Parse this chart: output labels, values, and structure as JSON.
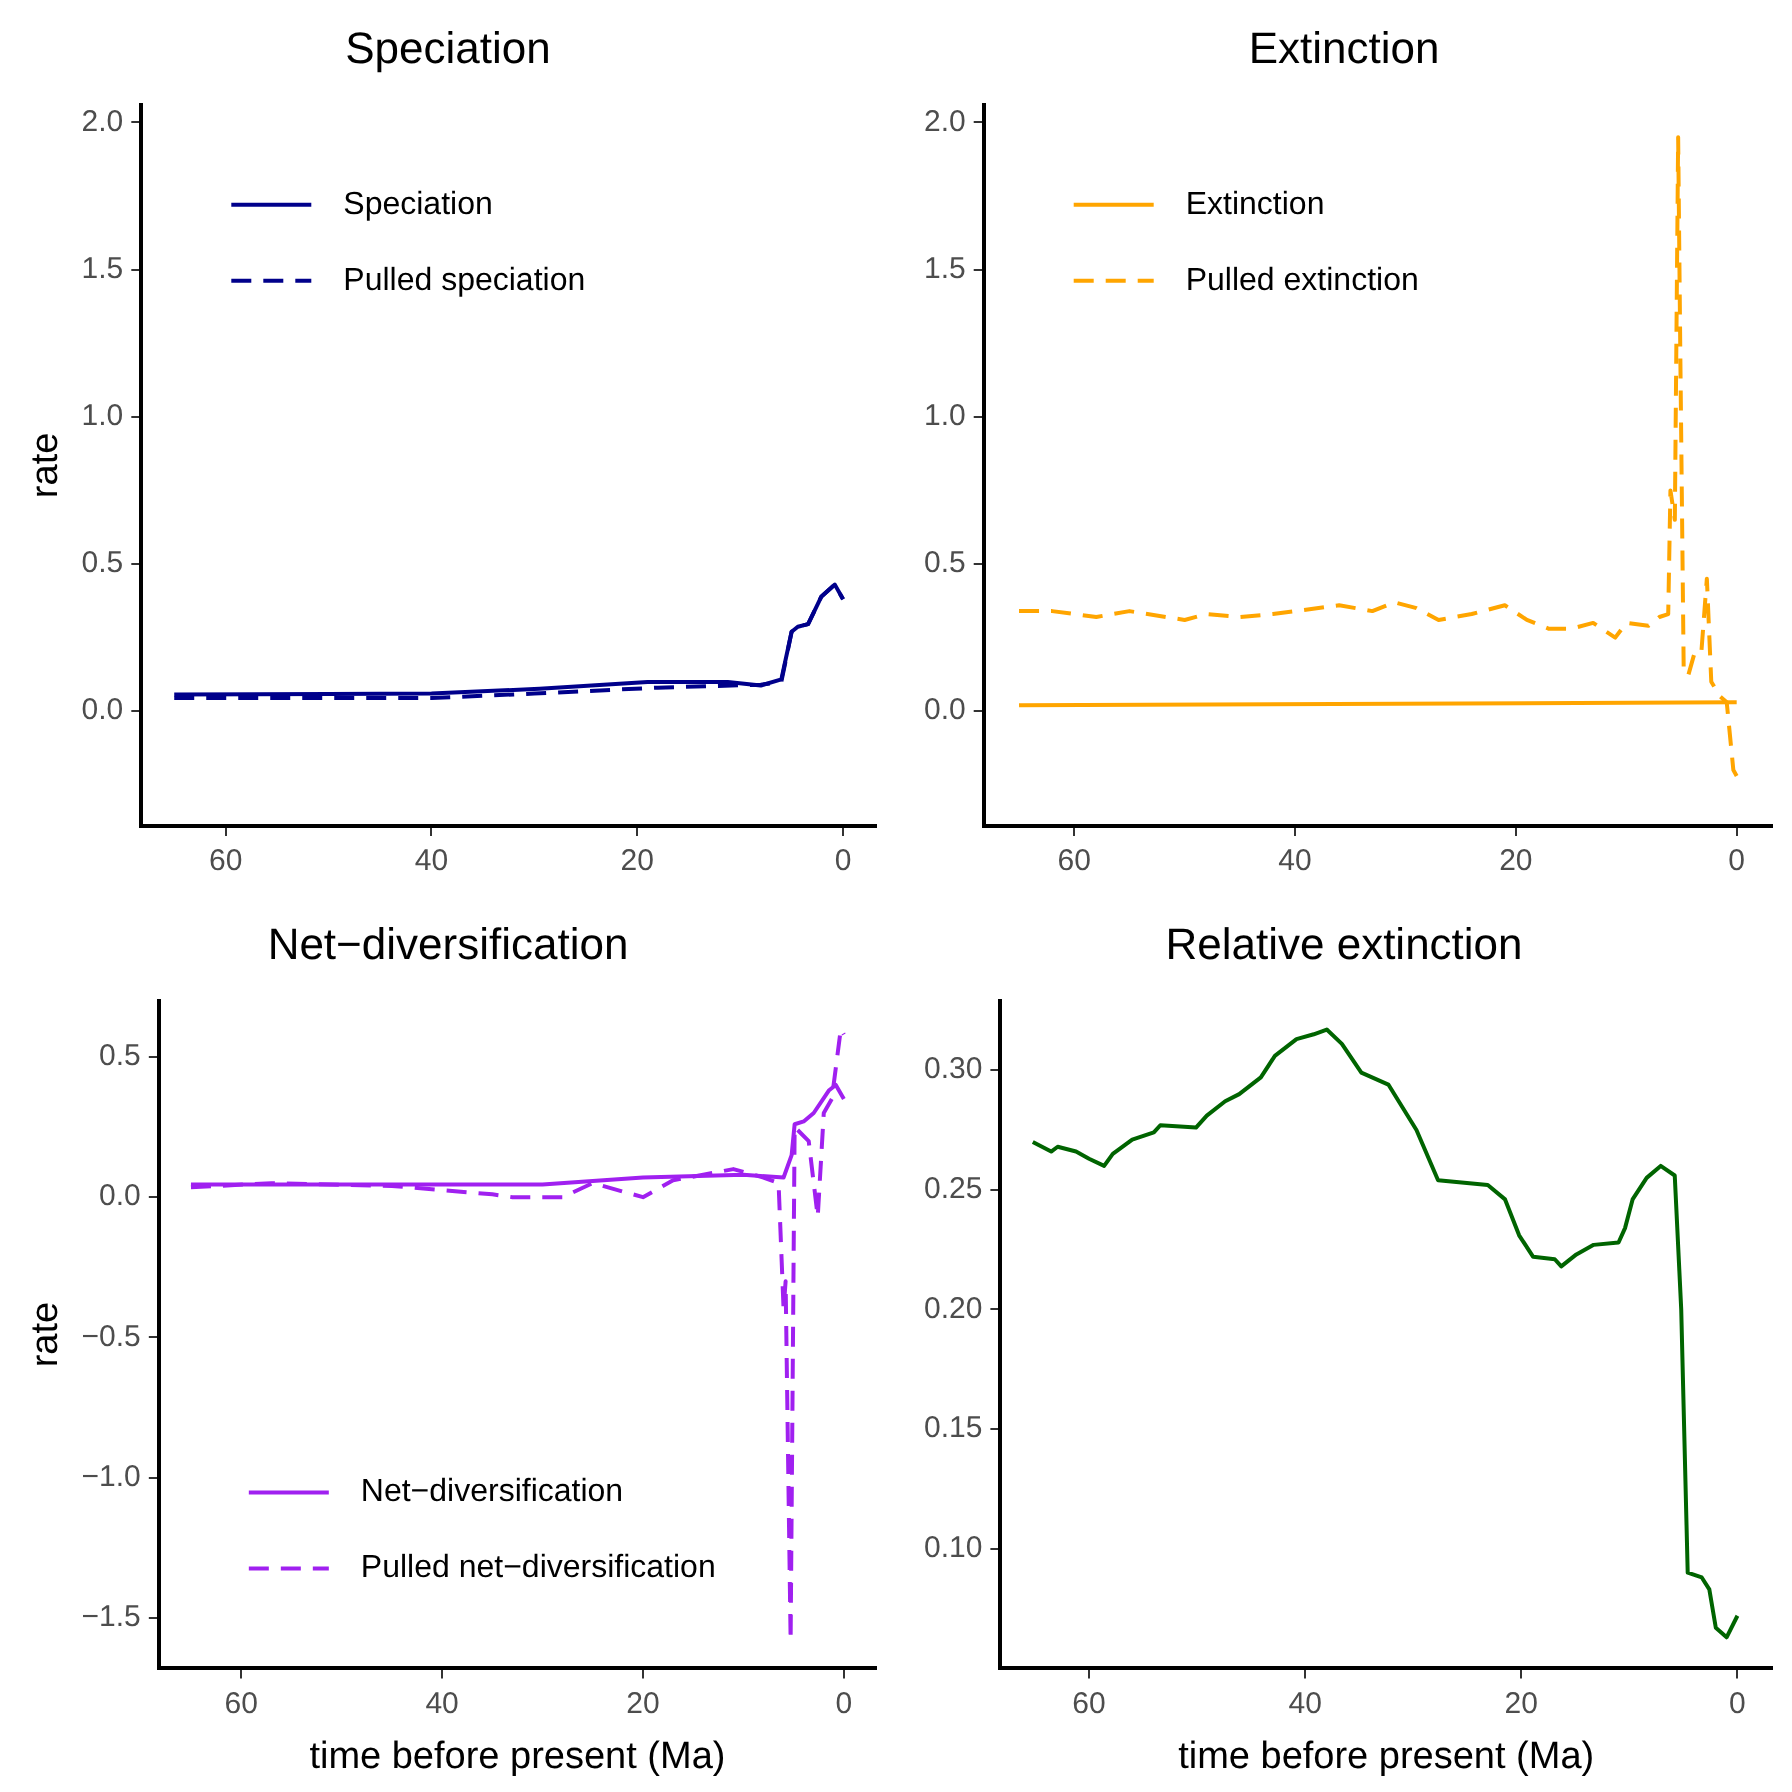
{
  "chart_data": [
    {
      "type": "line",
      "title": "Speciation",
      "ylabel": "rate",
      "xlim": [
        68.2,
        -3.2
      ],
      "xticks": [
        60,
        40,
        20,
        0
      ],
      "ylim": [
        -0.39,
        2.06
      ],
      "yticks": [
        {
          "value": 0,
          "label": "0.0"
        },
        {
          "value": 0.5,
          "label": "0.5"
        },
        {
          "value": 1,
          "label": "1.0"
        },
        {
          "value": 1.5,
          "label": "1.5"
        },
        {
          "value": 2,
          "label": "2.0"
        }
      ],
      "grid": false,
      "legend": "top left",
      "series": [
        {
          "name": "Speciation",
          "color": "#00008b",
          "line_style": "solid",
          "x": [
            65,
            50,
            40,
            29.5,
            19,
            11.2,
            8,
            6,
            5,
            4.4,
            3.4,
            2.1,
            0.8,
            0
          ],
          "values": [
            0.057,
            0.058,
            0.06,
            0.076,
            0.099,
            0.099,
            0.087,
            0.108,
            0.27,
            0.287,
            0.296,
            0.39,
            0.43,
            0.38
          ]
        },
        {
          "name": "Pulled speciation",
          "color": "#00008b",
          "line_style": "dashed",
          "x": [
            65,
            50,
            40,
            30,
            18,
            8,
            6,
            5,
            4.4,
            3.4,
            2.1,
            0.8,
            0
          ],
          "values": [
            0.045,
            0.045,
            0.045,
            0.06,
            0.08,
            0.09,
            0.1,
            0.27,
            0.287,
            0.296,
            0.39,
            0.43,
            0.38
          ]
        }
      ]
    },
    {
      "type": "line",
      "title": "Extinction",
      "xlim": [
        68.2,
        -3.2
      ],
      "xticks": [
        60,
        40,
        20,
        0
      ],
      "ylim": [
        -0.39,
        2.06
      ],
      "yticks": [
        {
          "value": 0,
          "label": "0.0"
        },
        {
          "value": 0.5,
          "label": "0.5"
        },
        {
          "value": 1,
          "label": "1.0"
        },
        {
          "value": 1.5,
          "label": "1.5"
        },
        {
          "value": 2,
          "label": "2.0"
        }
      ],
      "grid": false,
      "legend": "top left",
      "series": [
        {
          "name": "Extinction",
          "color": "#ffa500",
          "line_style": "solid",
          "x": [
            65,
            0
          ],
          "values": [
            0.02,
            0.03
          ]
        },
        {
          "name": "Pulled extinction",
          "color": "#ffa500",
          "line_style": "dashed",
          "x": [
            65,
            62,
            58,
            55,
            50,
            48,
            45,
            42,
            40,
            36,
            33,
            31,
            29,
            27,
            24,
            21,
            19,
            17,
            15,
            13,
            11,
            10,
            8,
            7,
            6.2,
            6,
            5.6,
            5.3,
            5.1,
            4.8,
            4.4,
            3.8,
            3.2,
            2.7,
            2.3,
            1.5,
            0.9,
            0.3,
            0
          ],
          "values": [
            0.34,
            0.34,
            0.32,
            0.34,
            0.31,
            0.33,
            0.32,
            0.33,
            0.34,
            0.36,
            0.34,
            0.37,
            0.35,
            0.31,
            0.33,
            0.36,
            0.31,
            0.28,
            0.28,
            0.3,
            0.25,
            0.3,
            0.29,
            0.32,
            0.33,
            0.75,
            0.65,
            1.95,
            1.2,
            0.15,
            0.12,
            0.2,
            0.2,
            0.45,
            0.1,
            0.05,
            0.03,
            -0.2,
            -0.22
          ]
        }
      ]
    },
    {
      "type": "line",
      "title": "Net−diversification",
      "xlabel": "time before present (Ma)",
      "ylabel": "rate",
      "xlim": [
        68.2,
        -3.2
      ],
      "xticks": [
        60,
        40,
        20,
        0
      ],
      "ylim": [
        -1.68,
        0.7
      ],
      "yticks": [
        {
          "value": -1.5,
          "label": "−1.5"
        },
        {
          "value": -1,
          "label": "−1.0"
        },
        {
          "value": -0.5,
          "label": "−0.5"
        },
        {
          "value": 0,
          "label": "0.0"
        },
        {
          "value": 0.5,
          "label": "0.5"
        }
      ],
      "grid": false,
      "legend": "bottom left",
      "series": [
        {
          "name": "Net−diversification",
          "color": "#a020f0",
          "line_style": "solid",
          "x": [
            65,
            45,
            30,
            20,
            10,
            6,
            5.2,
            4.9,
            4,
            3,
            1.5,
            0.8,
            0
          ],
          "values": [
            0.045,
            0.045,
            0.045,
            0.07,
            0.08,
            0.07,
            0.15,
            0.26,
            0.27,
            0.3,
            0.38,
            0.4,
            0.35
          ]
        },
        {
          "name": "Pulled net−diversification",
          "color": "#a020f0",
          "line_style": "dashed",
          "x": [
            65,
            57,
            45,
            35,
            33,
            28,
            25,
            20,
            17,
            14,
            11,
            8,
            6.5,
            6,
            5.8,
            5.3,
            4.9,
            3.5,
            2.6,
            2,
            1.2,
            0.3,
            0
          ],
          "values": [
            0.035,
            0.05,
            0.04,
            0.01,
            0,
            0,
            0.05,
            0,
            0.06,
            0.08,
            0.1,
            0.07,
            0.05,
            -0.4,
            -0.3,
            -1.58,
            0.25,
            0.2,
            -0.07,
            0.3,
            0.35,
            0.6,
            0.58
          ]
        }
      ]
    },
    {
      "type": "line",
      "title": "Relative extinction",
      "xlabel": "time before present (Ma)",
      "xlim": [
        68.2,
        -3.2
      ],
      "xticks": [
        60,
        40,
        20,
        0
      ],
      "ylim": [
        0.05,
        0.329
      ],
      "yticks": [
        {
          "value": 0.1,
          "label": "0.10"
        },
        {
          "value": 0.15,
          "label": "0.15"
        },
        {
          "value": 0.2,
          "label": "0.20"
        },
        {
          "value": 0.25,
          "label": "0.25"
        },
        {
          "value": 0.3,
          "label": "0.30"
        }
      ],
      "grid": false,
      "series": [
        {
          "color": "#006400",
          "line_style": "solid",
          "x": [
            65.2,
            63.5,
            62.9,
            61.2,
            60,
            58.6,
            57.8,
            56,
            54,
            53.4,
            50.1,
            49.1,
            47.4,
            46.1,
            44.1,
            42.8,
            40.8,
            39.2,
            38,
            36.6,
            34.8,
            32.3,
            29.7,
            27.7,
            23.1,
            21.5,
            20.2,
            18.9,
            16.9,
            16.3,
            14.9,
            13.3,
            11,
            10.4,
            9.7,
            8.4,
            7.1,
            5.8,
            5.2,
            4.6,
            3.3,
            2.6,
            2,
            1,
            0
          ],
          "values": [
            0.27,
            0.266,
            0.268,
            0.266,
            0.263,
            0.26,
            0.265,
            0.271,
            0.274,
            0.277,
            0.276,
            0.281,
            0.287,
            0.29,
            0.297,
            0.306,
            0.313,
            0.315,
            0.317,
            0.311,
            0.299,
            0.294,
            0.275,
            0.254,
            0.252,
            0.246,
            0.231,
            0.222,
            0.221,
            0.218,
            0.223,
            0.227,
            0.228,
            0.234,
            0.246,
            0.255,
            0.26,
            0.256,
            0.2,
            0.09,
            0.088,
            0.083,
            0.067,
            0.063,
            0.072
          ]
        }
      ]
    }
  ]
}
